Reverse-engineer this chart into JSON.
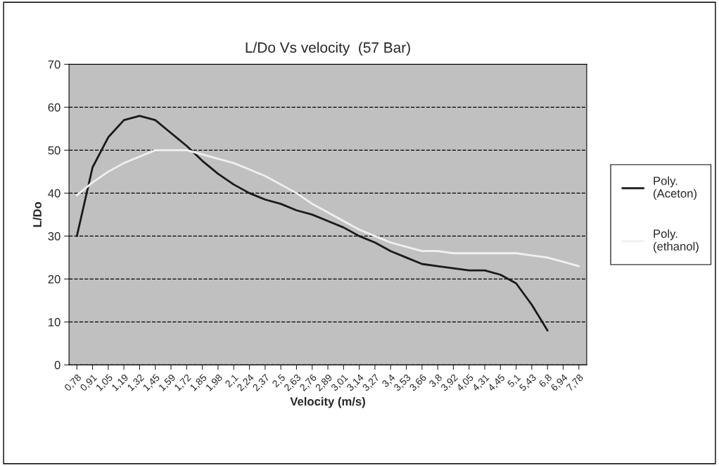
{
  "chart_data": {
    "type": "line",
    "title": "L/Do Vs velocity  (57 Bar)",
    "xlabel": "Velocity (m/s)",
    "ylabel": "L/Do",
    "categories": [
      "0,78",
      "0,91",
      "1,05",
      "1,19",
      "1,32",
      "1,45",
      "1,59",
      "1,72",
      "1,85",
      "1,98",
      "2,1",
      "2,24",
      "2,37",
      "2,5",
      "2,63",
      "2,76",
      "2,89",
      "3,01",
      "3,14",
      "3,27",
      "3,4",
      "3,53",
      "3,66",
      "3,8",
      "3,92",
      "4,05",
      "4,31",
      "4,45",
      "5,1",
      "5,43",
      "6,8",
      "6,94",
      "7,78"
    ],
    "series": [
      {
        "name": "Poly.\n(Aceton)",
        "color": "#1a1a1a",
        "values": [
          30,
          46,
          53,
          57,
          58,
          57,
          54,
          51,
          47.5,
          44.5,
          42,
          40,
          38.5,
          37.5,
          36,
          35,
          33.5,
          32,
          30,
          28.5,
          26.5,
          25,
          23.5,
          23,
          22.5,
          22,
          22,
          21,
          19,
          14,
          8,
          null,
          null
        ]
      },
      {
        "name": "Poly.\n(ethanol)",
        "color": "#f0f0f0",
        "values": [
          39.5,
          42.5,
          45,
          47,
          48.5,
          50,
          50,
          50,
          49,
          48,
          47,
          45.5,
          44,
          42,
          40,
          37.5,
          35.5,
          33.5,
          31.5,
          30,
          28.5,
          27.5,
          26.5,
          26.5,
          26,
          26,
          26,
          26,
          26,
          25.5,
          25,
          24,
          23
        ]
      }
    ],
    "ylim": [
      0,
      70
    ],
    "yticks": [
      0,
      10,
      20,
      30,
      40,
      50,
      60,
      70
    ],
    "grid": "y",
    "legend": "right",
    "line_style": "solid",
    "marker": "none"
  }
}
